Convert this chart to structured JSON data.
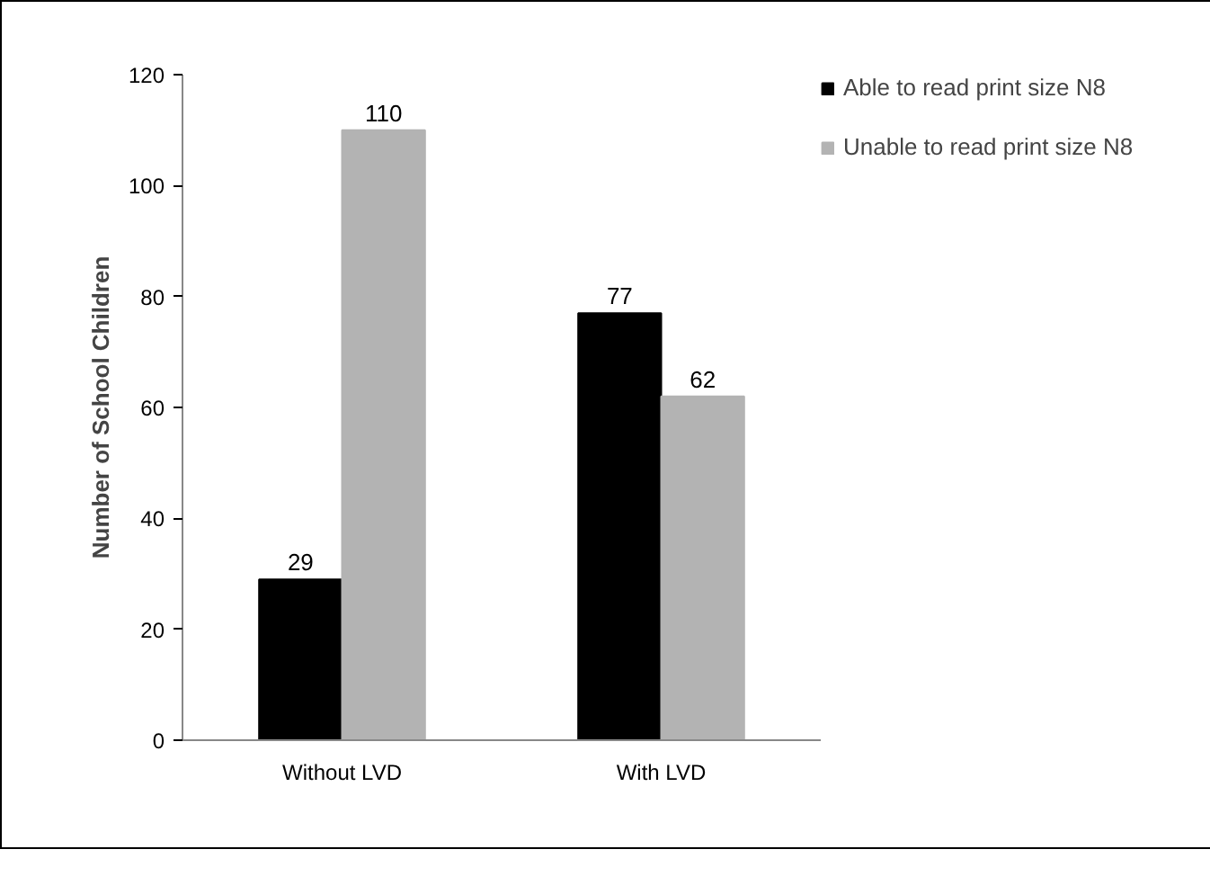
{
  "chart_data": {
    "type": "bar",
    "ylabel": "Number of School Children",
    "categories": [
      "Without LVD",
      "With LVD"
    ],
    "series": [
      {
        "name": "Able to read print size N8",
        "color": "#000000",
        "values": [
          29,
          77
        ]
      },
      {
        "name": "Unable to read print size N8",
        "color": "#b3b3b3",
        "values": [
          110,
          62
        ]
      }
    ],
    "ylim": [
      0,
      120
    ],
    "yticks": [
      0,
      20,
      40,
      60,
      80,
      100,
      120
    ],
    "grid": false,
    "legend": "top right",
    "data_labels": true
  }
}
